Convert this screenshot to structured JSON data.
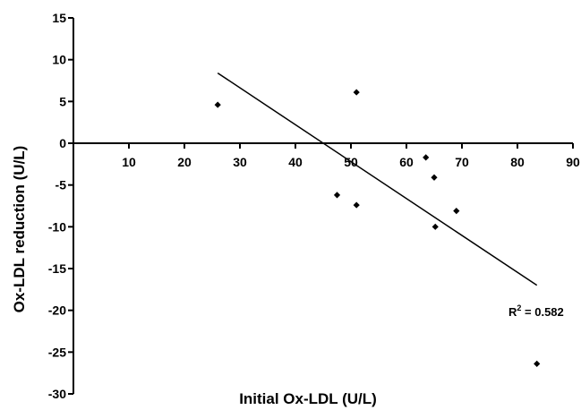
{
  "chart_data": {
    "type": "scatter",
    "xlabel": "Initial Ox-LDL (U/L)",
    "ylabel": "Ox-LDL reduction (U/L)",
    "xlim": [
      0,
      90
    ],
    "ylim": [
      -30,
      15
    ],
    "x_ticks": [
      10,
      20,
      30,
      40,
      50,
      60,
      70,
      80,
      90
    ],
    "y_ticks": [
      15,
      10,
      5,
      0,
      -5,
      -10,
      -15,
      -20,
      -25,
      -30
    ],
    "x_tick_labels": [
      "10",
      "20",
      "30",
      "40",
      "50",
      "60",
      "70",
      "80",
      "90"
    ],
    "y_tick_labels": [
      "15",
      "10",
      "5",
      "0",
      "-5",
      "-10",
      "-15",
      "-20",
      "-25",
      "-30"
    ],
    "grid": false,
    "points": [
      {
        "x": 26,
        "y": 4.6
      },
      {
        "x": 51,
        "y": 6.1
      },
      {
        "x": 47.5,
        "y": -6.2
      },
      {
        "x": 51,
        "y": -7.4
      },
      {
        "x": 63.5,
        "y": -1.7
      },
      {
        "x": 65,
        "y": -4.1
      },
      {
        "x": 65.2,
        "y": -10
      },
      {
        "x": 69,
        "y": -8.1
      },
      {
        "x": 83.5,
        "y": -26.4
      }
    ],
    "trendline": {
      "x": [
        26,
        83.5
      ],
      "y": [
        8.4,
        -17
      ]
    },
    "annotation": {
      "base": "R",
      "sup": "2",
      "rest": " = 0.582"
    }
  }
}
